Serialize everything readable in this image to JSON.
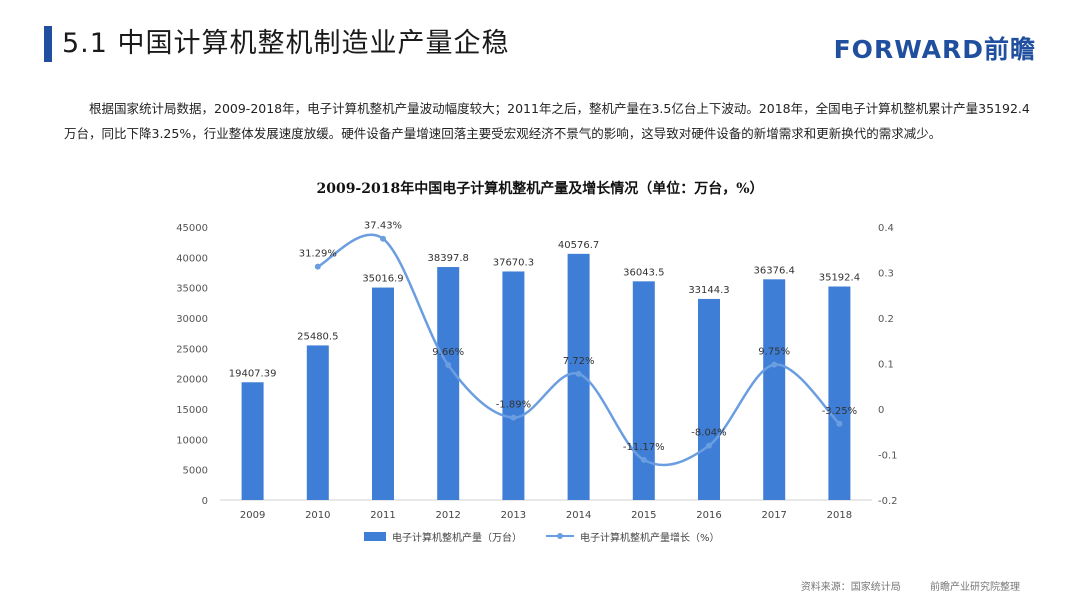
{
  "header": {
    "title": "5.1 中国计算机整机制造业产量企稳",
    "logo": "FORWARD前瞻"
  },
  "paragraph": "根据国家统计局数据，2009-2018年，电子计算机整机产量波动幅度较大；2011年之后，整机产量在3.5亿台上下波动。2018年，全国电子计算机整机累计产量35192.4万台，同比下降3.25%，行业整体发展速度放缓。硬件设备产量增速回落主要受宏观经济不景气的影响，这导致对硬件设备的新增需求和更新换代的需求减少。",
  "chart_data": {
    "type": "bar",
    "title": "2009-2018年中国电子计算机整机产量及增长情况（单位：万台，%）",
    "categories": [
      "2009",
      "2010",
      "2011",
      "2012",
      "2013",
      "2014",
      "2015",
      "2016",
      "2017",
      "2018"
    ],
    "series": [
      {
        "name": "电子计算机整机产量（万台）",
        "type": "bar",
        "axis": "left",
        "values": [
          19407.39,
          25480.5,
          35016.9,
          38397.8,
          37670.3,
          40576.7,
          36043.5,
          33144.3,
          36376.4,
          35192.4
        ],
        "labels": [
          "19407.39",
          "25480.5",
          "35016.9",
          "38397.8",
          "37670.3",
          "40576.7",
          "36043.5",
          "33144.3",
          "36376.4",
          "35192.4"
        ],
        "color": "#3f7ed6"
      },
      {
        "name": "电子计算机整机产量增长（%）",
        "type": "line",
        "axis": "right",
        "values": [
          null,
          0.3129,
          0.3743,
          0.0966,
          -0.0189,
          0.0772,
          -0.1117,
          -0.0804,
          0.0975,
          -0.0325
        ],
        "labels": [
          "",
          "31.29%",
          "37.43%",
          "9.66%",
          "-1.89%",
          "7.72%",
          "-11.17%",
          "-8.04%",
          "9.75%",
          "-3.25%"
        ],
        "color": "#6a9ee0"
      }
    ],
    "y_left": {
      "min": 0,
      "max": 45000,
      "ticks": [
        "0",
        "5000",
        "10000",
        "15000",
        "20000",
        "25000",
        "30000",
        "35000",
        "40000",
        "45000"
      ]
    },
    "y_right": {
      "min": -0.2,
      "max": 0.4,
      "ticks": [
        "-0.2",
        "-0.1",
        "0",
        "0.1",
        "0.2",
        "0.3",
        "0.4"
      ]
    },
    "grid": false,
    "legend": "bottom"
  },
  "source": {
    "label": "资料来源：国家统计局",
    "org": "前瞻产业研究院整理"
  }
}
